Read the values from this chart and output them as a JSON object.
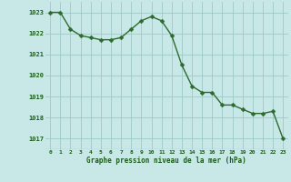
{
  "x": [
    0,
    1,
    2,
    3,
    4,
    5,
    6,
    7,
    8,
    9,
    10,
    11,
    12,
    13,
    14,
    15,
    16,
    17,
    18,
    19,
    20,
    21,
    22,
    23
  ],
  "y": [
    1023.0,
    1023.0,
    1022.2,
    1021.9,
    1021.8,
    1021.7,
    1021.7,
    1021.8,
    1022.2,
    1022.6,
    1022.8,
    1022.6,
    1021.9,
    1020.5,
    1019.5,
    1019.2,
    1019.2,
    1018.6,
    1018.6,
    1018.4,
    1018.2,
    1018.2,
    1018.3,
    1017.0
  ],
  "line_color": "#2d6a2d",
  "marker_color": "#2d6a2d",
  "bg_color": "#c8e8e8",
  "grid_color": "#a0c8c8",
  "xlabel": "Graphe pression niveau de la mer (hPa)",
  "xlabel_color": "#1a5c1a",
  "tick_color": "#1a5c1a",
  "ylim_min": 1016.5,
  "ylim_max": 1023.5,
  "yticks": [
    1017,
    1018,
    1019,
    1020,
    1021,
    1022,
    1023
  ],
  "xticks": [
    0,
    1,
    2,
    3,
    4,
    5,
    6,
    7,
    8,
    9,
    10,
    11,
    12,
    13,
    14,
    15,
    16,
    17,
    18,
    19,
    20,
    21,
    22,
    23
  ],
  "marker_size": 2.5,
  "line_width": 1.0
}
